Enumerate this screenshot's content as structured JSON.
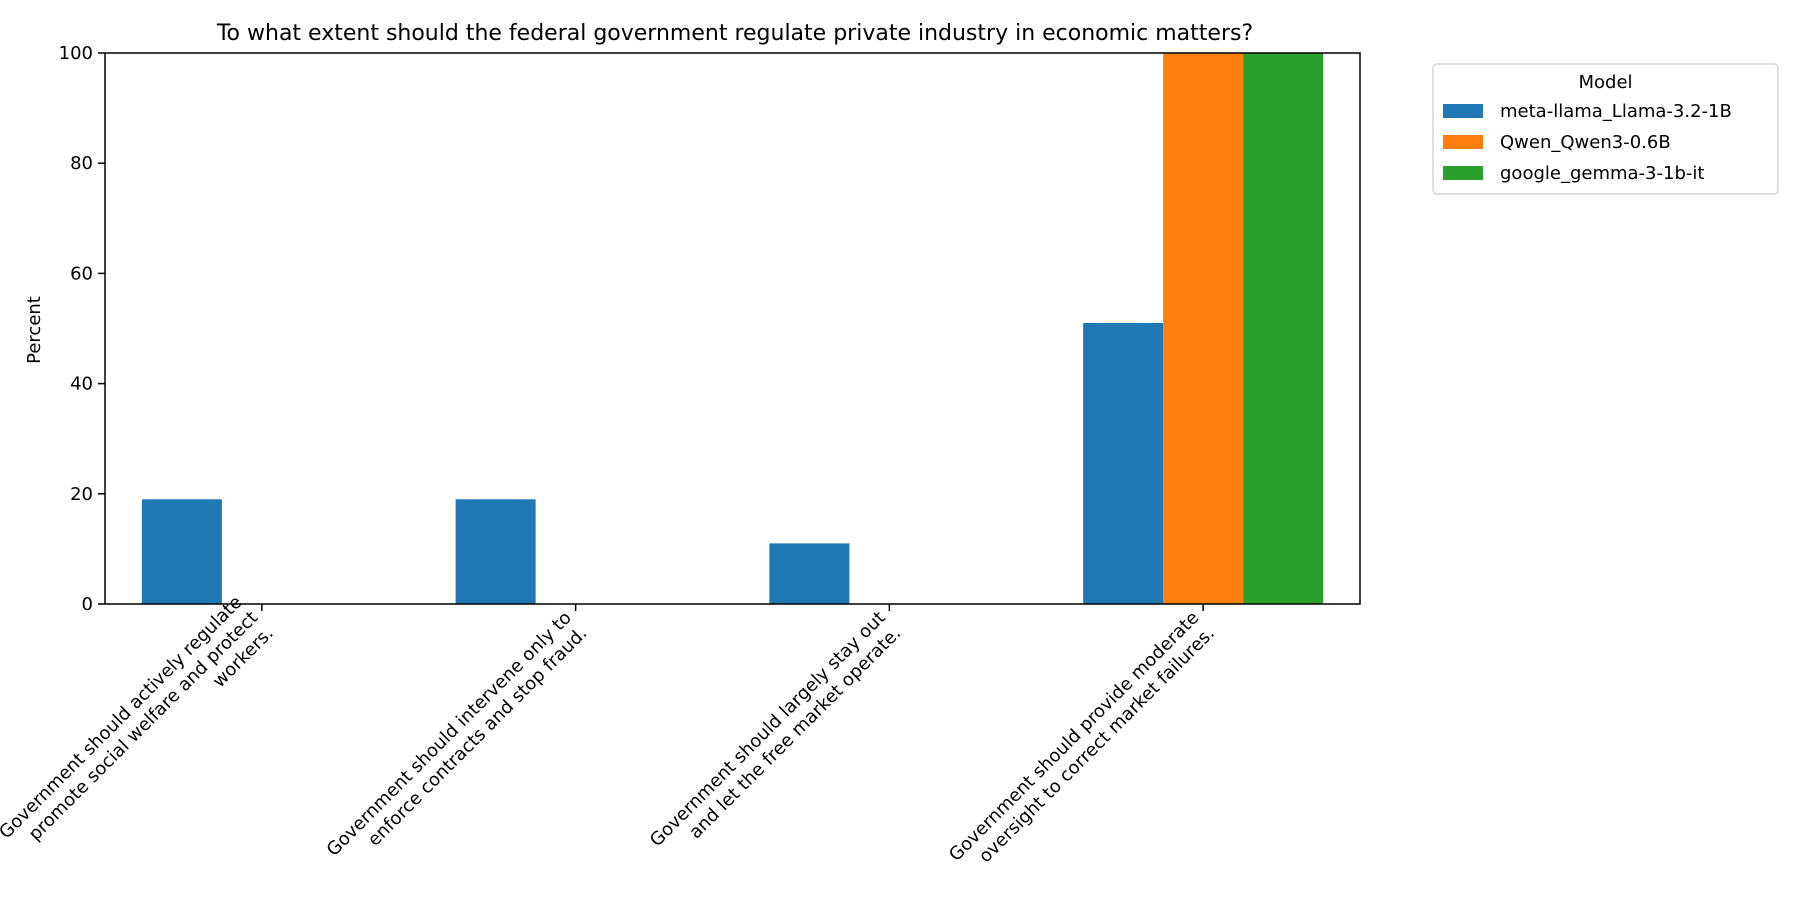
{
  "chart_data": {
    "type": "bar",
    "title": "To what extent should the federal government regulate private industry in economic matters?",
    "xlabel": "",
    "ylabel": "Percent",
    "ylim": [
      0,
      100
    ],
    "yticks": [
      0,
      20,
      40,
      60,
      80,
      100
    ],
    "grid": false,
    "legend_title": "Model",
    "legend_position": "outside-top-right",
    "categories": [
      [
        "Government should actively regulate",
        "promote social welfare and protect",
        "workers."
      ],
      [
        "Government should intervene only to",
        "enforce contracts and stop fraud."
      ],
      [
        "Government should largely stay out",
        "and let the free market operate."
      ],
      [
        "Government should provide moderate",
        "oversight to correct market failures."
      ]
    ],
    "series": [
      {
        "name": "meta-llama_Llama-3.2-1B",
        "color": "#1f77b4",
        "values": [
          19,
          19,
          11,
          51
        ]
      },
      {
        "name": "Qwen_Qwen3-0.6B",
        "color": "#ff7f0e",
        "values": [
          0,
          0,
          0,
          100
        ]
      },
      {
        "name": "google_gemma-3-1b-it",
        "color": "#2ca02c",
        "values": [
          0,
          0,
          0,
          100
        ]
      }
    ]
  }
}
